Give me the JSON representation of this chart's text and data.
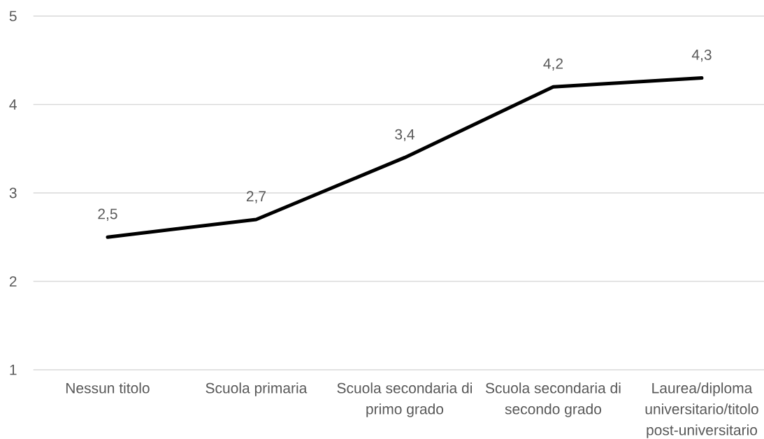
{
  "chart_data": {
    "type": "line",
    "categories": [
      "Nessun titolo",
      "Scuola primaria",
      "Scuola secondaria di primo grado",
      "Scuola secondaria di secondo grado",
      "Laurea/diploma universitario/titolo post-universitario"
    ],
    "series": [
      {
        "color": "#000000",
        "values": [
          2.5,
          2.7,
          3.4,
          4.2,
          4.3
        ],
        "value_labels": [
          "2,5",
          "2,7",
          "3,4",
          "4,2",
          "4,3"
        ]
      }
    ],
    "ylim": [
      1,
      5
    ],
    "yticks": [
      1,
      2,
      3,
      4,
      5
    ],
    "grid": "y",
    "line_style": "solid"
  }
}
